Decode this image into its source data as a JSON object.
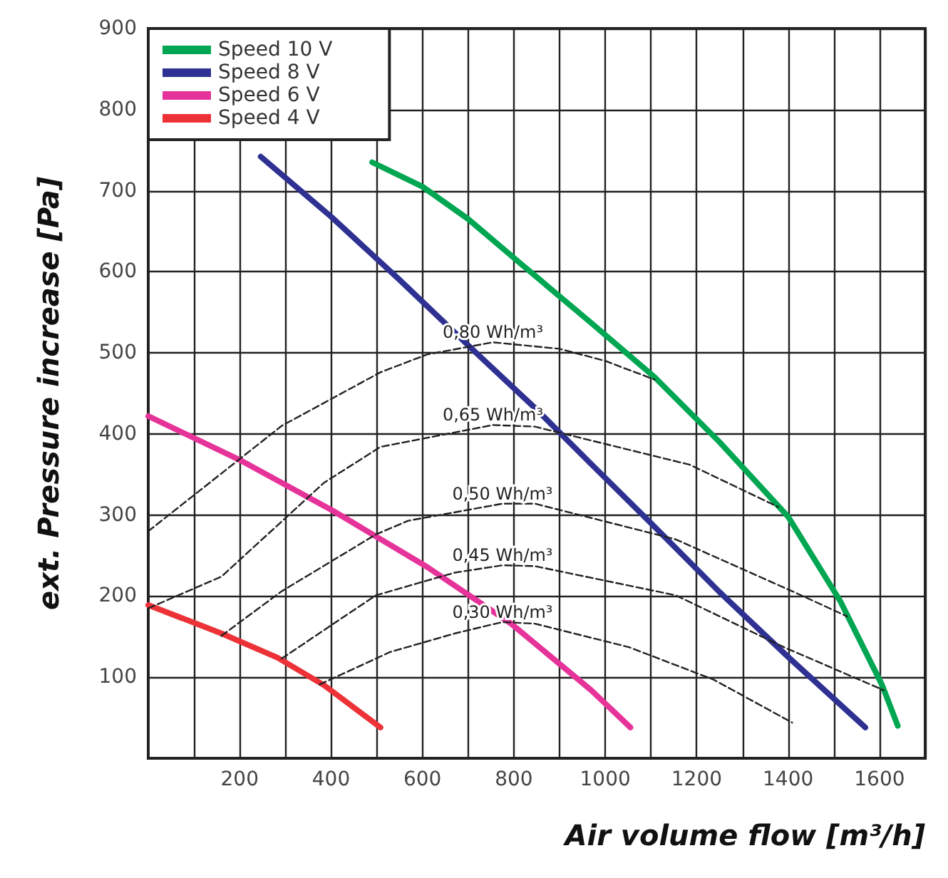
{
  "chart_data": {
    "type": "line",
    "xlabel": "Air volume flow [m³/h]",
    "ylabel": "ext. Pressure increase [Pa]",
    "xlim": [
      0,
      1700
    ],
    "ylim": [
      0,
      900
    ],
    "xticks": [
      {
        "value": 100,
        "label": null
      },
      200,
      {
        "value": 300,
        "label": null
      },
      400,
      {
        "value": 500,
        "label": null
      },
      600,
      {
        "value": 700,
        "label": null
      },
      800,
      {
        "value": 900,
        "label": null
      },
      1000,
      {
        "value": 1100,
        "label": null
      },
      1200,
      {
        "value": 1300,
        "label": null
      },
      1400,
      {
        "value": 1500,
        "label": null
      },
      1600,
      {
        "value": 1700,
        "label": null
      }
    ],
    "yticks": [
      100,
      200,
      300,
      400,
      500,
      600,
      700,
      800,
      900
    ],
    "grid": true,
    "legend": "top left",
    "marker": "none",
    "series": [
      {
        "name": "Speed 10 V",
        "color": "#00a651",
        "x": [
          490,
          600,
          700,
          815,
          969,
          1108,
          1250,
          1400,
          1514,
          1606,
          1640
        ],
        "values": [
          735,
          705,
          665,
          610,
          537,
          470,
          390,
          298,
          194,
          90,
          40
        ]
      },
      {
        "name": "Speed 8 V",
        "color": "#2e3192",
        "x": [
          246,
          400,
          550,
          708,
          850,
          969,
          1100,
          1250,
          1400,
          1569
        ],
        "values": [
          742,
          668,
          590,
          505,
          430,
          363,
          290,
          205,
          125,
          38
        ]
      },
      {
        "name": "Speed 6 V",
        "color": "#e6339a",
        "x": [
          0,
          200,
          405,
          610,
          794,
          969,
          1055
        ],
        "values": [
          422,
          368,
          305,
          236,
          166,
          84,
          38
        ]
      },
      {
        "name": "Speed 4 V",
        "color": "#ed3237",
        "x": [
          0,
          160,
          283,
          385,
          508
        ],
        "values": [
          189,
          154,
          124,
          90,
          38
        ]
      },
      {
        "name": "0,80 Wh/m³",
        "color": "#222222",
        "line_style": "dashed",
        "x": [
          0,
          292,
          508,
          610,
          754,
          900,
          1000,
          1108
        ],
        "values": [
          280,
          410,
          476,
          498,
          513,
          505,
          490,
          467
        ]
      },
      {
        "name": "0,65 Wh/m³",
        "color": "#222222",
        "line_style": "dashed",
        "x": [
          0,
          160,
          385,
          508,
          754,
          846,
          1185,
          1378
        ],
        "values": [
          185,
          224,
          340,
          384,
          411,
          409,
          362,
          310
        ]
      },
      {
        "name": "0,50 Wh/m³",
        "color": "#222222",
        "line_style": "dashed",
        "x": [
          160,
          292,
          498,
          569,
          775,
          846,
          1154,
          1409,
          1529
        ],
        "values": [
          151,
          206,
          276,
          293,
          314,
          314,
          270,
          206,
          175
        ]
      },
      {
        "name": "0,45 Wh/m³",
        "color": "#222222",
        "line_style": "dashed",
        "x": [
          292,
          498,
          671,
          775,
          846,
          1154,
          1391,
          1609
        ],
        "values": [
          123,
          201,
          229,
          238,
          237,
          201,
          137,
          84
        ]
      },
      {
        "name": "0,30 Wh/m³",
        "color": "#222222",
        "line_style": "dashed",
        "x": [
          375,
          529,
          671,
          775,
          846,
          1052,
          1237,
          1409
        ],
        "values": [
          91,
          131,
          154,
          168,
          166,
          137,
          97,
          44
        ]
      }
    ]
  }
}
